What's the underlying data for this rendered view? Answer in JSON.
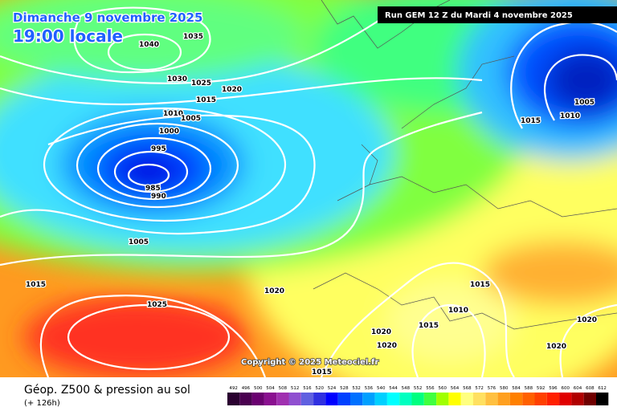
{
  "header": {
    "date": "Dimanche 9 novembre 2025",
    "time": "19:00 locale",
    "run": "Run GEM 12 Z du Mardi 4 novembre 2025"
  },
  "isobars": [
    "1040",
    "1035",
    "1030",
    "1025",
    "1020",
    "1015",
    "1010",
    "1005",
    "1000",
    "995",
    "985",
    "990",
    "1005",
    "1015",
    "1020",
    "1025",
    "1005",
    "1010",
    "1015",
    "1015",
    "1010",
    "1015",
    "1020",
    "1020",
    "1020",
    "1020",
    "1015"
  ],
  "copyright": "Copyright © 2025 Meteociel.fr",
  "footer": {
    "title": "Géop. Z500 & pression au sol",
    "lead_time": "(+ 126h)"
  },
  "legend": {
    "labels": [
      492,
      496,
      500,
      504,
      508,
      512,
      516,
      520,
      524,
      528,
      532,
      536,
      540,
      544,
      548,
      552,
      556,
      560,
      564,
      568,
      572,
      576,
      580,
      584,
      588,
      592,
      596,
      600,
      604,
      608,
      612
    ],
    "colors": [
      "#2a0030",
      "#4a0050",
      "#6a0070",
      "#8a1090",
      "#a030b0",
      "#9050d0",
      "#6060e0",
      "#3030e0",
      "#0000ff",
      "#0040ff",
      "#0070ff",
      "#00a0ff",
      "#00d0ff",
      "#00ffff",
      "#00ffc0",
      "#00ff80",
      "#40ff40",
      "#a0ff00",
      "#ffff00",
      "#ffff80",
      "#ffe060",
      "#ffc040",
      "#ffa020",
      "#ff8000",
      "#ff6000",
      "#ff4000",
      "#ff2000",
      "#e00000",
      "#b00000",
      "#700000",
      "#000000"
    ]
  }
}
